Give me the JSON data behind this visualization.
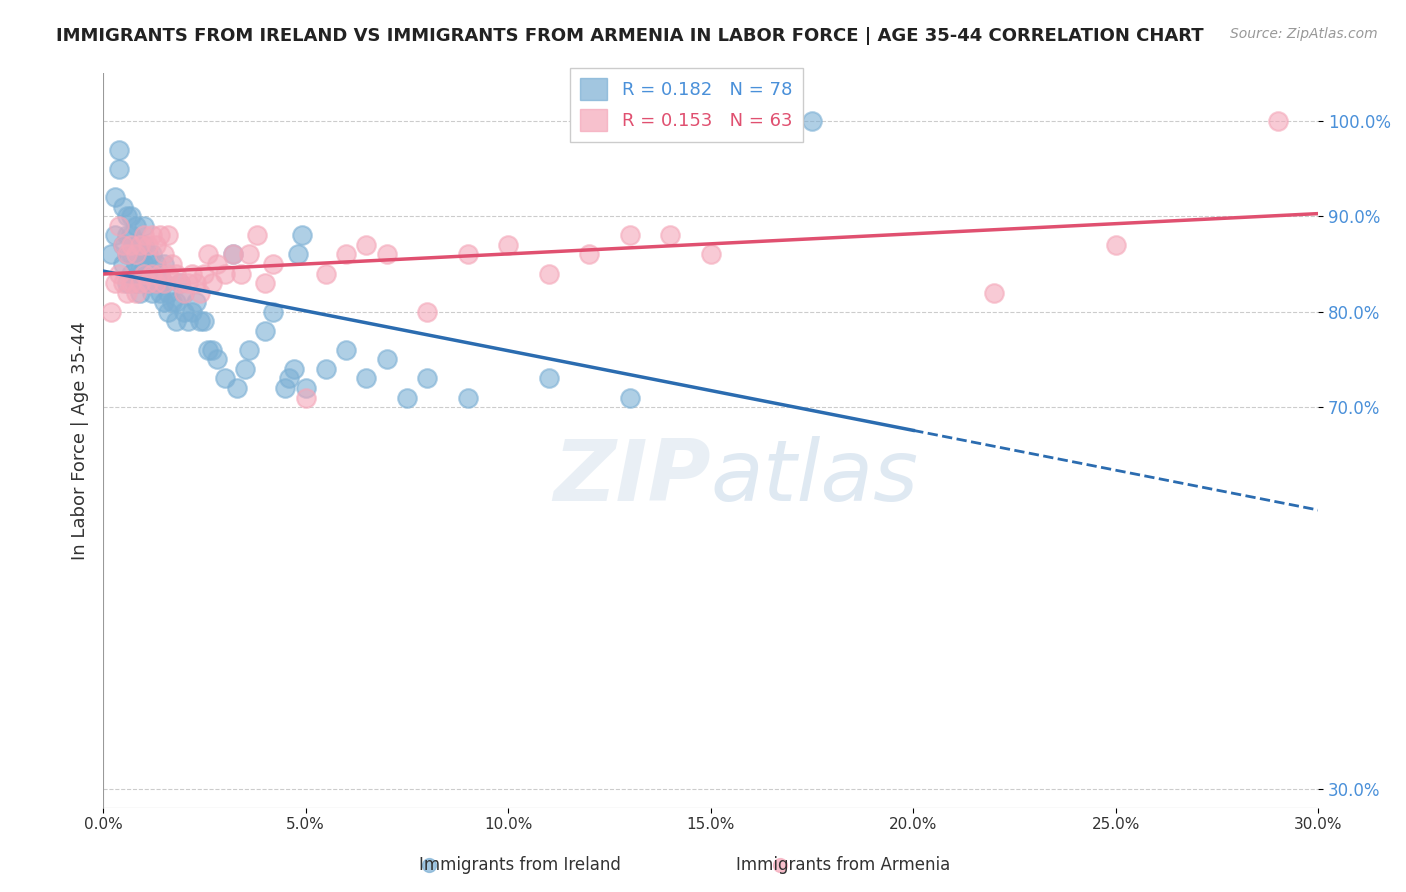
{
  "title": "IMMIGRANTS FROM IRELAND VS IMMIGRANTS FROM ARMENIA IN LABOR FORCE | AGE 35-44 CORRELATION CHART",
  "source": "Source: ZipAtlas.com",
  "xlabel": "",
  "ylabel": "In Labor Force | Age 35-44",
  "xlim": [
    0.0,
    0.3
  ],
  "ylim": [
    0.28,
    1.05
  ],
  "xticks": [
    0.0,
    0.05,
    0.1,
    0.15,
    0.2,
    0.25,
    0.3
  ],
  "xticklabels": [
    "0.0%",
    "5.0%",
    "10.0%",
    "15.0%",
    "20.0%",
    "25.0%",
    "30.0%"
  ],
  "yticks": [
    0.3,
    0.7,
    0.8,
    0.9,
    1.0
  ],
  "yticklabels": [
    "30.0%",
    "70.0%",
    "80.0%",
    "90.0%",
    "100.0%"
  ],
  "ireland_color": "#7bafd4",
  "armenia_color": "#f4a7b9",
  "ireland_R": 0.182,
  "ireland_N": 78,
  "armenia_R": 0.153,
  "armenia_N": 63,
  "ireland_label": "Immigrants from Ireland",
  "armenia_label": "Immigrants from Armenia",
  "watermark": "ZIPatlas",
  "ireland_points_x": [
    0.002,
    0.003,
    0.003,
    0.004,
    0.004,
    0.005,
    0.005,
    0.005,
    0.006,
    0.006,
    0.006,
    0.006,
    0.007,
    0.007,
    0.007,
    0.007,
    0.008,
    0.008,
    0.008,
    0.008,
    0.009,
    0.009,
    0.009,
    0.01,
    0.01,
    0.01,
    0.01,
    0.011,
    0.011,
    0.012,
    0.012,
    0.012,
    0.013,
    0.013,
    0.014,
    0.014,
    0.015,
    0.015,
    0.015,
    0.016,
    0.016,
    0.017,
    0.018,
    0.018,
    0.019,
    0.02,
    0.02,
    0.021,
    0.022,
    0.023,
    0.024,
    0.025,
    0.026,
    0.027,
    0.028,
    0.03,
    0.032,
    0.033,
    0.035,
    0.036,
    0.04,
    0.042,
    0.045,
    0.046,
    0.047,
    0.048,
    0.049,
    0.05,
    0.055,
    0.06,
    0.065,
    0.07,
    0.075,
    0.08,
    0.09,
    0.11,
    0.13,
    0.175
  ],
  "ireland_points_y": [
    0.86,
    0.88,
    0.92,
    0.95,
    0.97,
    0.85,
    0.87,
    0.91,
    0.83,
    0.86,
    0.88,
    0.9,
    0.84,
    0.86,
    0.88,
    0.9,
    0.83,
    0.85,
    0.87,
    0.89,
    0.82,
    0.84,
    0.86,
    0.83,
    0.85,
    0.87,
    0.89,
    0.84,
    0.86,
    0.82,
    0.84,
    0.86,
    0.83,
    0.85,
    0.82,
    0.84,
    0.81,
    0.83,
    0.85,
    0.8,
    0.82,
    0.81,
    0.79,
    0.81,
    0.83,
    0.8,
    0.82,
    0.79,
    0.8,
    0.81,
    0.79,
    0.79,
    0.76,
    0.76,
    0.75,
    0.73,
    0.86,
    0.72,
    0.74,
    0.76,
    0.78,
    0.8,
    0.72,
    0.73,
    0.74,
    0.86,
    0.88,
    0.72,
    0.74,
    0.76,
    0.73,
    0.75,
    0.71,
    0.73,
    0.71,
    0.73,
    0.71,
    1.0
  ],
  "armenia_points_x": [
    0.002,
    0.003,
    0.004,
    0.004,
    0.005,
    0.005,
    0.006,
    0.006,
    0.007,
    0.007,
    0.008,
    0.008,
    0.009,
    0.009,
    0.01,
    0.01,
    0.011,
    0.011,
    0.012,
    0.012,
    0.013,
    0.013,
    0.014,
    0.014,
    0.015,
    0.015,
    0.016,
    0.016,
    0.017,
    0.018,
    0.019,
    0.02,
    0.021,
    0.022,
    0.023,
    0.024,
    0.025,
    0.026,
    0.027,
    0.028,
    0.03,
    0.032,
    0.034,
    0.036,
    0.038,
    0.04,
    0.042,
    0.05,
    0.055,
    0.06,
    0.065,
    0.07,
    0.08,
    0.09,
    0.1,
    0.11,
    0.12,
    0.13,
    0.14,
    0.15,
    0.22,
    0.25,
    0.29
  ],
  "armenia_points_y": [
    0.8,
    0.83,
    0.84,
    0.89,
    0.83,
    0.87,
    0.82,
    0.86,
    0.83,
    0.87,
    0.82,
    0.86,
    0.83,
    0.87,
    0.84,
    0.88,
    0.83,
    0.87,
    0.84,
    0.88,
    0.83,
    0.87,
    0.84,
    0.88,
    0.83,
    0.86,
    0.84,
    0.88,
    0.85,
    0.84,
    0.83,
    0.82,
    0.83,
    0.84,
    0.83,
    0.82,
    0.84,
    0.86,
    0.83,
    0.85,
    0.84,
    0.86,
    0.84,
    0.86,
    0.88,
    0.83,
    0.85,
    0.71,
    0.84,
    0.86,
    0.87,
    0.86,
    0.8,
    0.86,
    0.87,
    0.84,
    0.86,
    0.88,
    0.88,
    0.86,
    0.82,
    0.87,
    1.0
  ]
}
